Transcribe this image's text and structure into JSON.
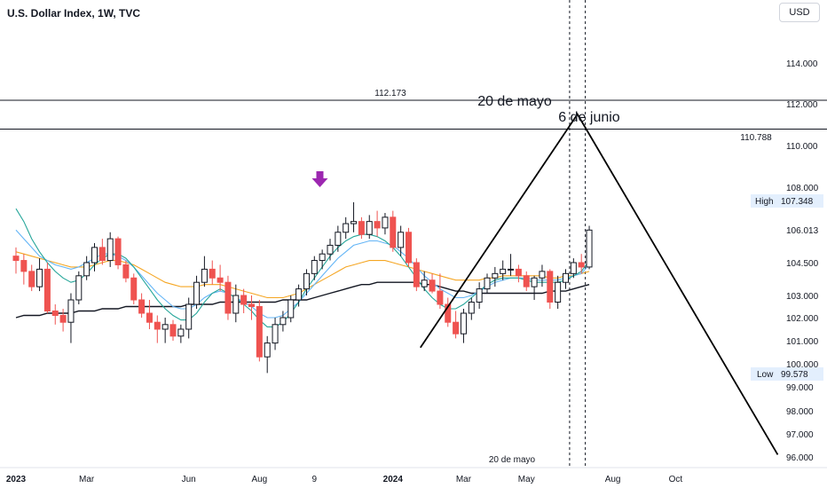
{
  "header": {
    "title": "U.S. Dollar Index, 1W, TVC",
    "currency": "USD"
  },
  "price_labels": {
    "high_label": "High",
    "high_value": "107.348",
    "low_label": "Low",
    "low_value": "99.578"
  },
  "annotations": {
    "level_top": "112.173",
    "level_bottom": "110.788",
    "peak_label_1": "20 de mayo",
    "peak_label_2": "6 de junio",
    "bottom_label": "20 de mayo"
  },
  "colors": {
    "up": "#ffffff",
    "down": "#ef5350",
    "arrow": "#9c27b0",
    "ma_black": "#131722",
    "ma_orange": "#f5a623",
    "ma_blue": "#64b5f6",
    "ma_green": "#26a69a"
  },
  "chart_data": {
    "type": "candlestick",
    "title": "U.S. Dollar Index, 1W, TVC",
    "ylim": [
      95.8,
      117
    ],
    "y_ticks": [
      "114.000",
      "112.000",
      "110.000",
      "108.000",
      "106.013",
      "104.500",
      "103.000",
      "102.000",
      "101.000",
      "100.000",
      "99.000",
      "98.000",
      "97.000",
      "96.000"
    ],
    "y_tick_values": [
      114,
      112,
      110,
      108,
      106.013,
      104.5,
      103,
      102,
      101,
      100,
      99,
      98,
      97,
      96
    ],
    "x_ticks": [
      "2023",
      "Mar",
      "Jun",
      "Aug",
      "9",
      "2024",
      "Mar",
      "May",
      "Aug",
      "Oct"
    ],
    "x_tick_weeks": [
      0,
      9,
      22,
      31,
      38,
      48,
      57,
      65,
      76,
      84
    ],
    "candles": [
      {
        "o": 104.8,
        "h": 105.2,
        "l": 104.0,
        "c": 104.6
      },
      {
        "o": 104.6,
        "h": 104.9,
        "l": 103.5,
        "c": 104.1
      },
      {
        "o": 104.1,
        "h": 104.4,
        "l": 103.2,
        "c": 103.4
      },
      {
        "o": 103.4,
        "h": 104.7,
        "l": 103.2,
        "c": 104.2
      },
      {
        "o": 104.2,
        "h": 104.5,
        "l": 102.2,
        "c": 102.3
      },
      {
        "o": 102.3,
        "h": 102.6,
        "l": 101.7,
        "c": 102.1
      },
      {
        "o": 102.1,
        "h": 102.4,
        "l": 101.4,
        "c": 101.8
      },
      {
        "o": 101.8,
        "h": 103.1,
        "l": 100.9,
        "c": 102.8
      },
      {
        "o": 102.8,
        "h": 104.1,
        "l": 102.6,
        "c": 103.9
      },
      {
        "o": 103.9,
        "h": 104.8,
        "l": 103.7,
        "c": 104.5
      },
      {
        "o": 104.5,
        "h": 105.4,
        "l": 104.1,
        "c": 105.2
      },
      {
        "o": 105.2,
        "h": 105.6,
        "l": 104.4,
        "c": 104.6
      },
      {
        "o": 104.6,
        "h": 105.9,
        "l": 104.3,
        "c": 105.6
      },
      {
        "o": 105.6,
        "h": 105.7,
        "l": 104.2,
        "c": 104.4
      },
      {
        "o": 104.4,
        "h": 104.6,
        "l": 103.6,
        "c": 103.8
      },
      {
        "o": 103.8,
        "h": 104.0,
        "l": 102.6,
        "c": 102.8
      },
      {
        "o": 102.8,
        "h": 103.1,
        "l": 102.0,
        "c": 102.2
      },
      {
        "o": 102.2,
        "h": 102.8,
        "l": 101.5,
        "c": 101.8
      },
      {
        "o": 101.8,
        "h": 102.1,
        "l": 100.9,
        "c": 101.5
      },
      {
        "o": 101.5,
        "h": 102.0,
        "l": 100.9,
        "c": 101.7
      },
      {
        "o": 101.7,
        "h": 101.9,
        "l": 101.0,
        "c": 101.2
      },
      {
        "o": 101.2,
        "h": 101.7,
        "l": 100.9,
        "c": 101.5
      },
      {
        "o": 101.5,
        "h": 102.9,
        "l": 101.1,
        "c": 102.6
      },
      {
        "o": 102.6,
        "h": 103.9,
        "l": 102.4,
        "c": 103.6
      },
      {
        "o": 103.6,
        "h": 104.8,
        "l": 103.4,
        "c": 104.2
      },
      {
        "o": 104.2,
        "h": 104.6,
        "l": 103.5,
        "c": 103.8
      },
      {
        "o": 103.8,
        "h": 104.4,
        "l": 103.2,
        "c": 103.6
      },
      {
        "o": 103.6,
        "h": 103.9,
        "l": 101.9,
        "c": 102.2
      },
      {
        "o": 102.2,
        "h": 103.5,
        "l": 101.8,
        "c": 103.0
      },
      {
        "o": 103.0,
        "h": 103.3,
        "l": 102.2,
        "c": 102.6
      },
      {
        "o": 102.6,
        "h": 103.0,
        "l": 101.9,
        "c": 102.5
      },
      {
        "o": 102.5,
        "h": 102.8,
        "l": 100.1,
        "c": 100.3
      },
      {
        "o": 100.3,
        "h": 101.2,
        "l": 99.6,
        "c": 100.9
      },
      {
        "o": 100.9,
        "h": 102.0,
        "l": 100.6,
        "c": 101.7
      },
      {
        "o": 101.7,
        "h": 102.3,
        "l": 101.4,
        "c": 102.0
      },
      {
        "o": 102.0,
        "h": 103.0,
        "l": 101.8,
        "c": 102.8
      },
      {
        "o": 102.8,
        "h": 103.5,
        "l": 102.5,
        "c": 103.3
      },
      {
        "o": 103.3,
        "h": 104.2,
        "l": 103.0,
        "c": 104.0
      },
      {
        "o": 104.0,
        "h": 104.8,
        "l": 103.7,
        "c": 104.6
      },
      {
        "o": 104.6,
        "h": 105.1,
        "l": 104.2,
        "c": 104.9
      },
      {
        "o": 104.9,
        "h": 105.6,
        "l": 104.6,
        "c": 105.3
      },
      {
        "o": 105.3,
        "h": 106.2,
        "l": 105.0,
        "c": 105.9
      },
      {
        "o": 105.9,
        "h": 106.6,
        "l": 105.6,
        "c": 106.3
      },
      {
        "o": 106.3,
        "h": 107.3,
        "l": 105.9,
        "c": 106.4
      },
      {
        "o": 106.4,
        "h": 106.6,
        "l": 105.6,
        "c": 105.8
      },
      {
        "o": 105.8,
        "h": 106.7,
        "l": 105.6,
        "c": 106.4
      },
      {
        "o": 106.4,
        "h": 106.9,
        "l": 105.7,
        "c": 106.1
      },
      {
        "o": 106.1,
        "h": 106.8,
        "l": 105.8,
        "c": 106.6
      },
      {
        "o": 106.6,
        "h": 106.9,
        "l": 105.0,
        "c": 105.2
      },
      {
        "o": 105.2,
        "h": 106.2,
        "l": 104.8,
        "c": 105.9
      },
      {
        "o": 105.9,
        "h": 106.1,
        "l": 104.3,
        "c": 104.5
      },
      {
        "o": 104.5,
        "h": 104.7,
        "l": 103.2,
        "c": 103.4
      },
      {
        "o": 103.4,
        "h": 104.1,
        "l": 103.2,
        "c": 103.7
      },
      {
        "o": 103.7,
        "h": 104.0,
        "l": 103.1,
        "c": 103.2
      },
      {
        "o": 103.2,
        "h": 104.0,
        "l": 102.4,
        "c": 102.6
      },
      {
        "o": 102.6,
        "h": 102.9,
        "l": 101.6,
        "c": 101.8
      },
      {
        "o": 101.8,
        "h": 102.3,
        "l": 101.1,
        "c": 101.3
      },
      {
        "o": 101.3,
        "h": 102.4,
        "l": 100.9,
        "c": 102.2
      },
      {
        "o": 102.2,
        "h": 102.9,
        "l": 101.9,
        "c": 102.7
      },
      {
        "o": 102.7,
        "h": 103.6,
        "l": 102.4,
        "c": 103.3
      },
      {
        "o": 103.3,
        "h": 104.0,
        "l": 103.1,
        "c": 103.8
      },
      {
        "o": 103.8,
        "h": 104.3,
        "l": 103.4,
        "c": 104.0
      },
      {
        "o": 104.0,
        "h": 104.6,
        "l": 103.7,
        "c": 104.2
      },
      {
        "o": 104.2,
        "h": 104.9,
        "l": 103.9,
        "c": 104.2
      },
      {
        "o": 104.2,
        "h": 104.4,
        "l": 103.6,
        "c": 103.9
      },
      {
        "o": 103.9,
        "h": 104.1,
        "l": 103.2,
        "c": 103.4
      },
      {
        "o": 103.4,
        "h": 103.9,
        "l": 102.8,
        "c": 103.8
      },
      {
        "o": 103.8,
        "h": 104.4,
        "l": 103.4,
        "c": 104.1
      },
      {
        "o": 104.1,
        "h": 104.2,
        "l": 102.4,
        "c": 102.7
      },
      {
        "o": 102.7,
        "h": 103.9,
        "l": 102.4,
        "c": 103.6
      },
      {
        "o": 103.6,
        "h": 104.2,
        "l": 103.3,
        "c": 104.0
      },
      {
        "o": 104.0,
        "h": 104.7,
        "l": 103.8,
        "c": 104.5
      },
      {
        "o": 104.5,
        "h": 104.9,
        "l": 104.0,
        "c": 104.3
      },
      {
        "o": 104.3,
        "h": 106.2,
        "l": 104.2,
        "c": 106.0
      }
    ],
    "moving_averages": [
      {
        "color": "#131722",
        "values": [
          102.0,
          102.1,
          102.1,
          102.1,
          102.2,
          102.2,
          102.2,
          102.2,
          102.3,
          102.3,
          102.3,
          102.4,
          102.4,
          102.4,
          102.5,
          102.5,
          102.5,
          102.5,
          102.5,
          102.5,
          102.5,
          102.5,
          102.6,
          102.6,
          102.6,
          102.6,
          102.7,
          102.7,
          102.7,
          102.7,
          102.7,
          102.7,
          102.7,
          102.7,
          102.8,
          102.8,
          102.8,
          102.8,
          102.9,
          103.0,
          103.1,
          103.2,
          103.3,
          103.4,
          103.5,
          103.5,
          103.6,
          103.6,
          103.6,
          103.6,
          103.6,
          103.6,
          103.5,
          103.5,
          103.4,
          103.3,
          103.2,
          103.2,
          103.1,
          103.1,
          103.1,
          103.1,
          103.1,
          103.1,
          103.1,
          103.1,
          103.1,
          103.1,
          103.2,
          103.2,
          103.2,
          103.3,
          103.4,
          103.5
        ]
      },
      {
        "color": "#f5a623",
        "values": [
          105.0,
          104.9,
          104.8,
          104.7,
          104.6,
          104.5,
          104.4,
          104.3,
          104.3,
          104.3,
          104.4,
          104.5,
          104.6,
          104.6,
          104.5,
          104.4,
          104.2,
          104.0,
          103.8,
          103.6,
          103.5,
          103.4,
          103.4,
          103.4,
          103.5,
          103.5,
          103.5,
          103.4,
          103.3,
          103.2,
          103.1,
          103.0,
          102.9,
          102.9,
          102.9,
          103.0,
          103.1,
          103.3,
          103.5,
          103.7,
          103.9,
          104.1,
          104.3,
          104.4,
          104.5,
          104.6,
          104.6,
          104.6,
          104.5,
          104.4,
          104.3,
          104.2,
          104.1,
          104.0,
          103.9,
          103.8,
          103.7,
          103.7,
          103.7,
          103.7,
          103.8,
          103.8,
          103.9,
          103.9,
          103.9,
          103.9,
          103.9,
          103.9,
          103.8,
          103.8,
          103.9,
          103.9,
          104.0,
          104.1
        ]
      },
      {
        "color": "#64b5f6",
        "values": [
          106.0,
          105.6,
          105.2,
          104.8,
          104.6,
          104.4,
          104.3,
          104.2,
          104.3,
          104.5,
          104.7,
          104.9,
          104.9,
          104.8,
          104.6,
          104.3,
          103.9,
          103.5,
          103.1,
          102.8,
          102.5,
          102.4,
          102.4,
          102.6,
          102.9,
          103.1,
          103.2,
          103.1,
          102.9,
          102.7,
          102.5,
          102.2,
          102.0,
          102.0,
          102.1,
          102.4,
          102.7,
          103.1,
          103.5,
          103.9,
          104.3,
          104.7,
          105.0,
          105.3,
          105.4,
          105.5,
          105.5,
          105.4,
          105.3,
          105.0,
          104.7,
          104.3,
          103.9,
          103.6,
          103.3,
          103.1,
          102.9,
          102.9,
          103.0,
          103.2,
          103.4,
          103.6,
          103.7,
          103.8,
          103.8,
          103.8,
          103.7,
          103.7,
          103.7,
          103.7,
          103.8,
          103.9,
          104.0,
          104.4
        ]
      },
      {
        "color": "#26a69a",
        "values": [
          107.0,
          106.4,
          105.6,
          105.0,
          104.5,
          104.1,
          103.8,
          103.6,
          103.7,
          104.0,
          104.4,
          104.7,
          104.9,
          104.9,
          104.7,
          104.3,
          103.8,
          103.3,
          102.8,
          102.4,
          102.1,
          101.9,
          101.9,
          102.2,
          102.7,
          103.1,
          103.3,
          103.1,
          102.9,
          102.6,
          102.3,
          101.9,
          101.6,
          101.6,
          101.8,
          102.2,
          102.7,
          103.3,
          103.8,
          104.3,
          104.8,
          105.2,
          105.5,
          105.7,
          105.8,
          105.8,
          105.7,
          105.5,
          105.2,
          104.8,
          104.3,
          103.8,
          103.3,
          102.9,
          102.6,
          102.4,
          102.4,
          102.6,
          102.9,
          103.2,
          103.5,
          103.7,
          103.8,
          103.8,
          103.8,
          103.7,
          103.6,
          103.6,
          103.6,
          103.6,
          103.7,
          103.9,
          104.1,
          104.6
        ]
      }
    ],
    "horizontal_levels": [
      112.173,
      110.788
    ],
    "projection": {
      "from": [
        51.5,
        100.7
      ],
      "peak": [
        71.5,
        111.5
      ],
      "to": [
        97,
        96.1
      ]
    },
    "vertical_markers_week": [
      70.5,
      72.5
    ],
    "arrow_week": 38.7,
    "arrow_price": 108.3
  }
}
